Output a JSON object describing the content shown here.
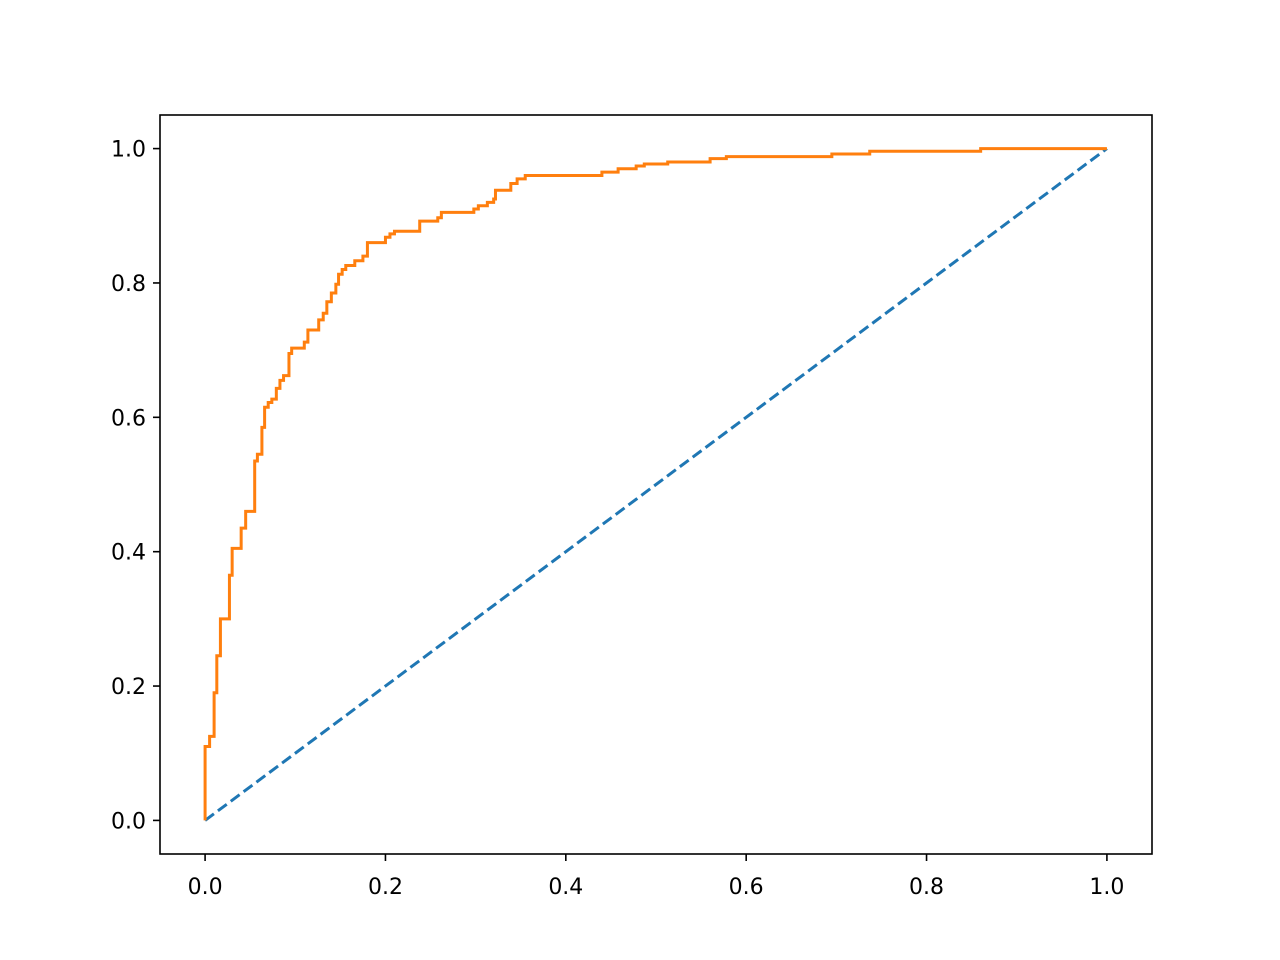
{
  "chart_data": {
    "type": "line",
    "title": "",
    "xlabel": "",
    "ylabel": "",
    "xlim": [
      -0.05,
      1.05
    ],
    "ylim": [
      -0.05,
      1.05
    ],
    "x_ticks": [
      "0.0",
      "0.2",
      "0.4",
      "0.6",
      "0.8",
      "1.0"
    ],
    "y_ticks": [
      "0.0",
      "0.2",
      "0.4",
      "0.6",
      "0.8",
      "1.0"
    ],
    "grid": false,
    "legend": "none",
    "series": [
      {
        "style": "dashed",
        "color": "#1f77b4",
        "points": [
          [
            0.0,
            0.0
          ],
          [
            1.0,
            1.0
          ]
        ]
      },
      {
        "style": "solid",
        "step": true,
        "color": "#ff7f0e",
        "points": [
          [
            0.0,
            0.0
          ],
          [
            0.0,
            0.11
          ],
          [
            0.005,
            0.11
          ],
          [
            0.005,
            0.125
          ],
          [
            0.01,
            0.125
          ],
          [
            0.01,
            0.19
          ],
          [
            0.013,
            0.19
          ],
          [
            0.013,
            0.245
          ],
          [
            0.017,
            0.245
          ],
          [
            0.017,
            0.3
          ],
          [
            0.027,
            0.3
          ],
          [
            0.027,
            0.365
          ],
          [
            0.03,
            0.365
          ],
          [
            0.03,
            0.405
          ],
          [
            0.04,
            0.405
          ],
          [
            0.04,
            0.435
          ],
          [
            0.045,
            0.435
          ],
          [
            0.045,
            0.46
          ],
          [
            0.055,
            0.46
          ],
          [
            0.055,
            0.535
          ],
          [
            0.058,
            0.535
          ],
          [
            0.058,
            0.545
          ],
          [
            0.063,
            0.545
          ],
          [
            0.063,
            0.585
          ],
          [
            0.066,
            0.585
          ],
          [
            0.066,
            0.615
          ],
          [
            0.07,
            0.615
          ],
          [
            0.07,
            0.622
          ],
          [
            0.074,
            0.622
          ],
          [
            0.074,
            0.627
          ],
          [
            0.079,
            0.627
          ],
          [
            0.079,
            0.643
          ],
          [
            0.083,
            0.643
          ],
          [
            0.083,
            0.655
          ],
          [
            0.087,
            0.655
          ],
          [
            0.087,
            0.662
          ],
          [
            0.093,
            0.662
          ],
          [
            0.093,
            0.695
          ],
          [
            0.096,
            0.695
          ],
          [
            0.096,
            0.703
          ],
          [
            0.11,
            0.703
          ],
          [
            0.11,
            0.712
          ],
          [
            0.114,
            0.712
          ],
          [
            0.114,
            0.73
          ],
          [
            0.126,
            0.73
          ],
          [
            0.126,
            0.745
          ],
          [
            0.131,
            0.745
          ],
          [
            0.131,
            0.755
          ],
          [
            0.135,
            0.755
          ],
          [
            0.135,
            0.772
          ],
          [
            0.14,
            0.772
          ],
          [
            0.14,
            0.785
          ],
          [
            0.145,
            0.785
          ],
          [
            0.145,
            0.798
          ],
          [
            0.148,
            0.798
          ],
          [
            0.148,
            0.813
          ],
          [
            0.152,
            0.813
          ],
          [
            0.152,
            0.82
          ],
          [
            0.156,
            0.82
          ],
          [
            0.156,
            0.826
          ],
          [
            0.166,
            0.826
          ],
          [
            0.166,
            0.833
          ],
          [
            0.175,
            0.833
          ],
          [
            0.175,
            0.84
          ],
          [
            0.18,
            0.84
          ],
          [
            0.18,
            0.86
          ],
          [
            0.2,
            0.86
          ],
          [
            0.2,
            0.868
          ],
          [
            0.205,
            0.868
          ],
          [
            0.205,
            0.873
          ],
          [
            0.21,
            0.873
          ],
          [
            0.21,
            0.877
          ],
          [
            0.238,
            0.877
          ],
          [
            0.238,
            0.892
          ],
          [
            0.258,
            0.892
          ],
          [
            0.258,
            0.897
          ],
          [
            0.262,
            0.897
          ],
          [
            0.262,
            0.905
          ],
          [
            0.298,
            0.905
          ],
          [
            0.298,
            0.91
          ],
          [
            0.303,
            0.91
          ],
          [
            0.303,
            0.915
          ],
          [
            0.313,
            0.915
          ],
          [
            0.313,
            0.92
          ],
          [
            0.32,
            0.92
          ],
          [
            0.32,
            0.925
          ],
          [
            0.322,
            0.925
          ],
          [
            0.322,
            0.938
          ],
          [
            0.339,
            0.938
          ],
          [
            0.339,
            0.948
          ],
          [
            0.346,
            0.948
          ],
          [
            0.346,
            0.955
          ],
          [
            0.355,
            0.955
          ],
          [
            0.355,
            0.96
          ],
          [
            0.44,
            0.96
          ],
          [
            0.44,
            0.965
          ],
          [
            0.458,
            0.965
          ],
          [
            0.458,
            0.97
          ],
          [
            0.478,
            0.97
          ],
          [
            0.478,
            0.974
          ],
          [
            0.487,
            0.974
          ],
          [
            0.487,
            0.977
          ],
          [
            0.513,
            0.977
          ],
          [
            0.513,
            0.98
          ],
          [
            0.56,
            0.98
          ],
          [
            0.56,
            0.985
          ],
          [
            0.578,
            0.985
          ],
          [
            0.578,
            0.988
          ],
          [
            0.695,
            0.988
          ],
          [
            0.695,
            0.992
          ],
          [
            0.737,
            0.992
          ],
          [
            0.737,
            0.996
          ],
          [
            0.86,
            0.996
          ],
          [
            0.86,
            1.0
          ],
          [
            1.0,
            1.0
          ]
        ]
      }
    ]
  }
}
